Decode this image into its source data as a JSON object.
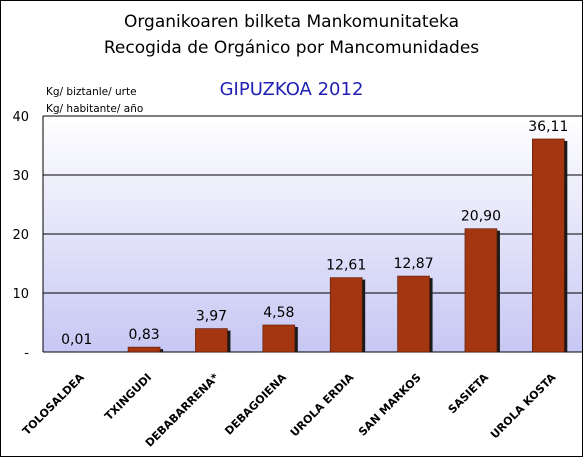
{
  "chart_data": {
    "type": "bar",
    "title": "Organikoaren bilketa Mankomunitateka",
    "subtitle": "Recogida de Orgánico por Mancomunidades",
    "region_year": "GIPUZKOA 2012",
    "ylabel_lines": [
      "Kg/ biztanle/ urte",
      "Kg/ habitante/ año"
    ],
    "categories": [
      "TOLOSALDEA",
      "TXINGUDI",
      "DEBABARRENA*",
      "DEBAGOIENA",
      "UROLA ERDIA",
      "SAN MARKOS",
      "SASIETA",
      "UROLA KOSTA"
    ],
    "values": [
      0.01,
      0.83,
      3.97,
      4.58,
      12.61,
      12.87,
      20.9,
      36.11
    ],
    "value_labels": [
      "0,01",
      "0,83",
      "3,97",
      "4,58",
      "12,61",
      "12,87",
      "20,90",
      "36,11"
    ],
    "ylim": [
      0,
      40
    ],
    "yticks": [
      0,
      10,
      20,
      30,
      40
    ],
    "ytick_labels": [
      "-",
      "10",
      "20",
      "30",
      "40"
    ],
    "grid": true,
    "legend": "none",
    "colors": {
      "bar": "#a33511",
      "bar_shadow": "#1a1a1a",
      "plot_top": "#ffffff",
      "plot_bottom": "#c7c7f4",
      "subtitle_text": "#1f1fb4"
    }
  }
}
